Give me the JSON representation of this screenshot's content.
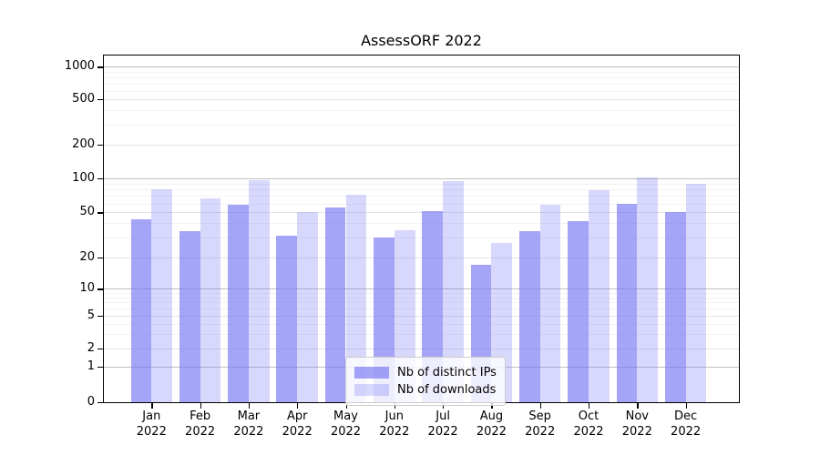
{
  "title": "AssessORF 2022",
  "chart_data": {
    "type": "bar",
    "title": "AssessORF 2022",
    "categories": [
      "Jan 2022",
      "Feb 2022",
      "Mar 2022",
      "Apr 2022",
      "May 2022",
      "Jun 2022",
      "Jul 2022",
      "Aug 2022",
      "Sep 2022",
      "Oct 2022",
      "Nov 2022",
      "Dec 2022"
    ],
    "series": [
      {
        "name": "Nb of distinct IPs",
        "color": "rgba(116,116,244,0.65)",
        "values": [
          43,
          34,
          58,
          31,
          55,
          30,
          51,
          17,
          34,
          42,
          60,
          50
        ]
      },
      {
        "name": "Nb of downloads",
        "color": "rgba(116,116,244,0.28)",
        "values": [
          80,
          66,
          96,
          50,
          71,
          35,
          95,
          27,
          58,
          78,
          102,
          90
        ]
      }
    ],
    "yscale": "symlog",
    "yticks": [
      0,
      1,
      2,
      5,
      10,
      20,
      50,
      100,
      200,
      500,
      1000
    ],
    "ylim": [
      0,
      1270
    ],
    "xlabel": "",
    "ylabel": "",
    "grid": "both",
    "legend_position": "lower center"
  },
  "colors": {
    "bar_dark": "rgba(116,116,244,0.65)",
    "bar_light": "rgba(116,116,244,0.28)",
    "grid_major": "#bfbfbf",
    "grid_minor": "#f2f2f2"
  }
}
